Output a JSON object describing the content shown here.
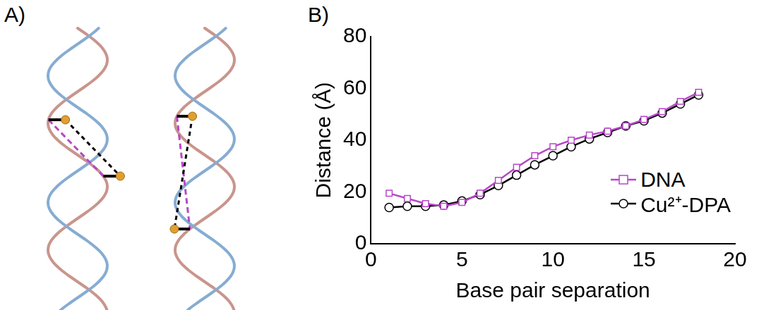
{
  "panel_labels": [
    "A)",
    "B)"
  ],
  "chart_data": {
    "type": "line",
    "x_label": "Base pair separation",
    "y_label": "Distance (Å)",
    "x": [
      1,
      2,
      3,
      4,
      5,
      6,
      7,
      8,
      9,
      10,
      11,
      12,
      13,
      14,
      15,
      16,
      17,
      18
    ],
    "series": [
      {
        "name": "DNA",
        "color": "#b847c9",
        "marker": "square",
        "values": [
          19.5,
          17.5,
          15.5,
          14.5,
          16,
          19.5,
          24.5,
          29.5,
          34,
          37.5,
          40,
          42,
          43.5,
          45.5,
          48,
          51,
          55,
          58.5
        ]
      },
      {
        "name": "Cu²⁺-DPA",
        "color": "#000000",
        "marker": "circle",
        "values": [
          14,
          14.5,
          14.5,
          15,
          16.5,
          19,
          22.5,
          26.5,
          30.5,
          34,
          37.5,
          40.5,
          43,
          45.5,
          47.5,
          50.5,
          54,
          57.5
        ]
      }
    ],
    "xlim": [
      0,
      20
    ],
    "xticks": [
      0,
      5,
      10,
      15,
      20
    ],
    "ylim": [
      0,
      80
    ],
    "yticks": [
      0,
      20,
      40,
      60,
      80
    ],
    "grid": false,
    "legend": "lower right"
  }
}
